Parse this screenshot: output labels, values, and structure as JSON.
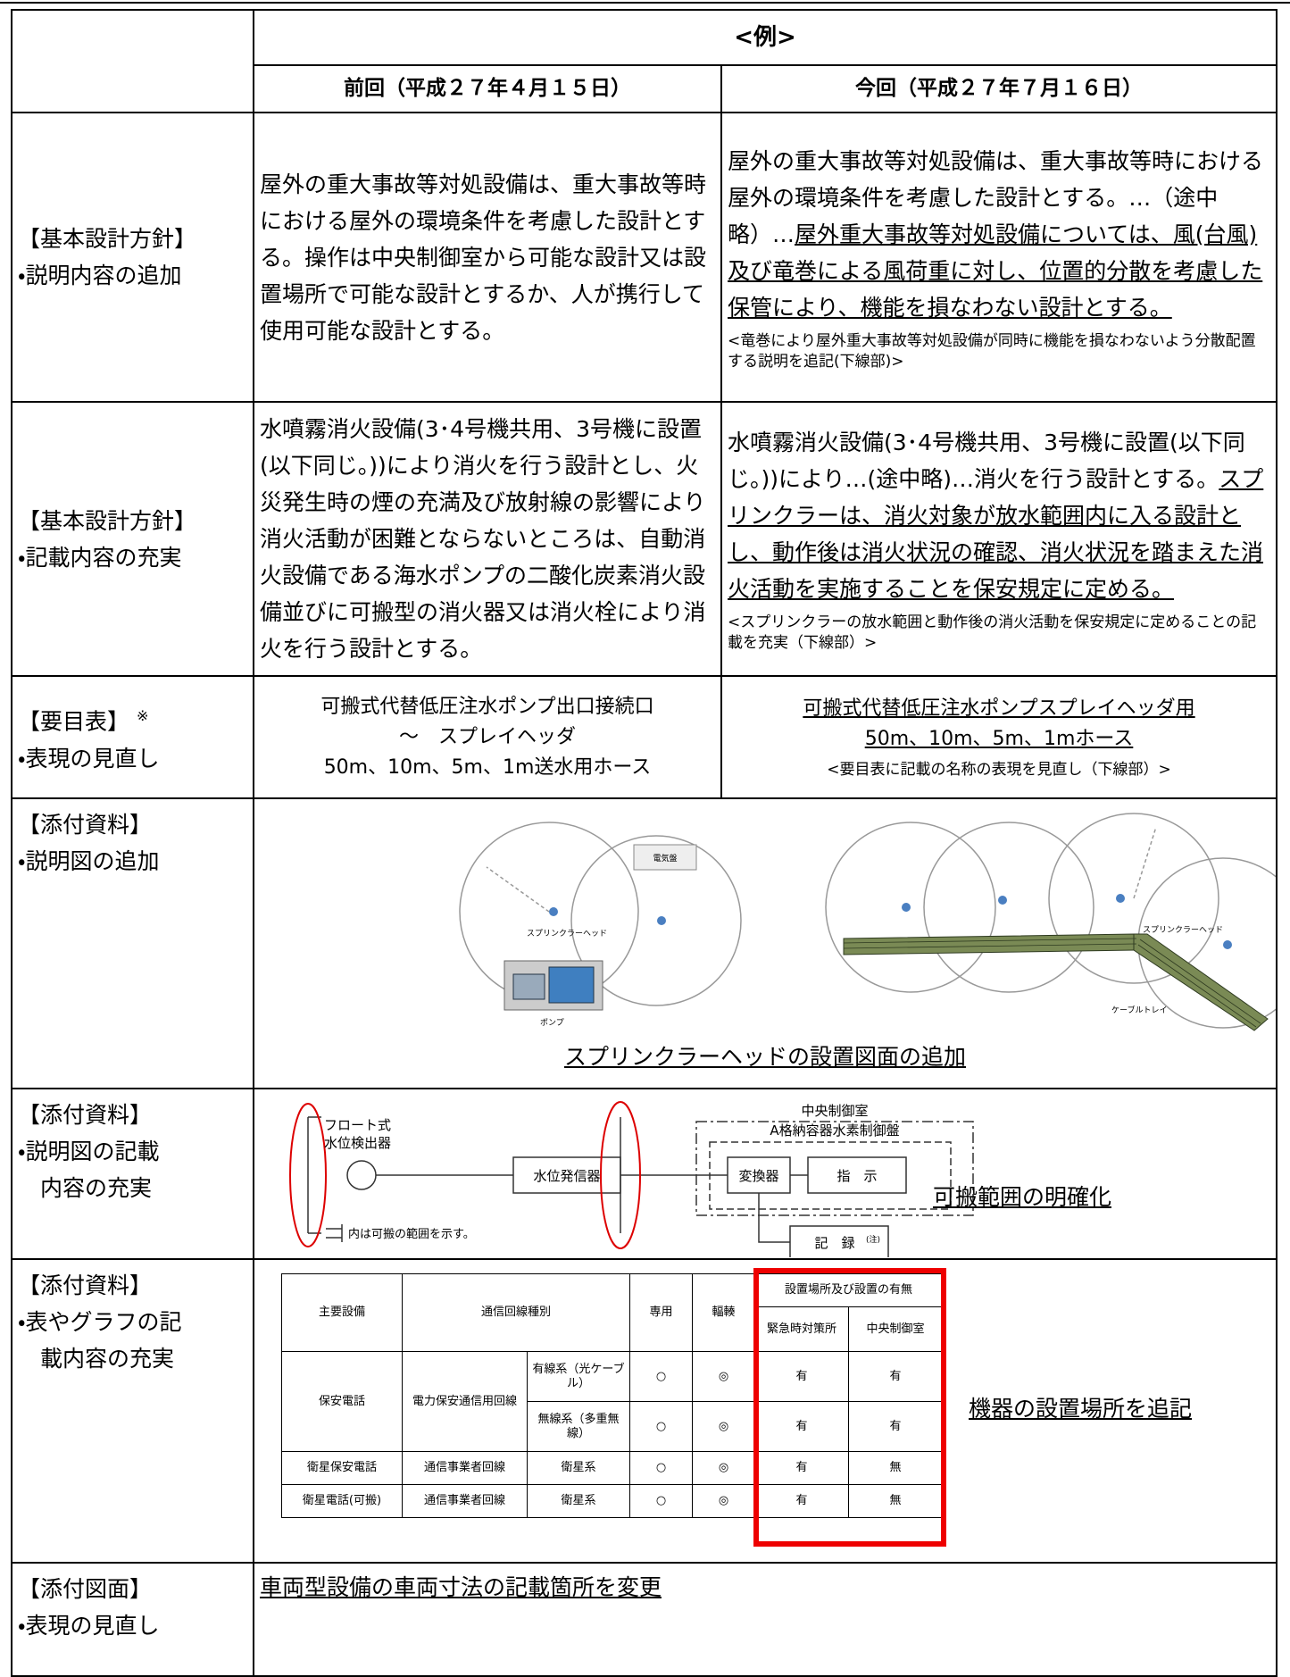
{
  "header": {
    "example": "<例>",
    "before": "前回（平成２７年４月１５日）",
    "after": "今回（平成２７年７月１６日）"
  },
  "rows": [
    {
      "label": [
        "【基本設計方針】",
        "・説明内容の追加"
      ],
      "before": {
        "paragraphs": [
          [
            {
              "text": "屋外の重大事故等対処設備は、重大事故等時における屋外の環境条件を考慮した設計とする。操作は中央制御室から可能な設計又は設置場所で可能な設計とするか、人が携行して使用可能な設計とする。",
              "underline": false
            }
          ]
        ]
      },
      "after": {
        "paragraphs": [
          [
            {
              "text": "屋外の重大事故等対処設備は、重大事故等時における屋外の環境条件を考慮した設計とする。…（途中略）…",
              "underline": false
            },
            {
              "text": "屋外重大事故等対処設備については、風(台風)及び竜巻による風荷重に対し、位置的分散を考慮した保管により、機能を損なわない設計とする。",
              "underline": true
            }
          ]
        ],
        "note": "<竜巻により屋外重大事故等対処設備が同時に機能を損なわないよう分散配置する説明を追記(下線部)>"
      }
    },
    {
      "label": [
        "【基本設計方針】",
        "・記載内容の充実"
      ],
      "before": {
        "paragraphs": [
          [
            {
              "text": "水噴霧消火設備(3･4号機共用、3号機に設置(以下同じ。))により消火を行う設計とし、火災発生時の煙の充満及び放射線の影響により消火活動が困難とならないところは、自動消火設備である海水ポンプの二酸化炭素消火設備並びに可搬型の消火器又は消火栓により消火を行う設計とする。",
              "underline": false
            }
          ]
        ]
      },
      "after": {
        "paragraphs": [
          [
            {
              "text": "水噴霧消火設備(3･4号機共用、3号機に設置(以下同じ。))により…(途中略)…消火を行う設計とする。",
              "underline": false
            },
            {
              "text": "スプリンクラーは、消火対象が放水範囲内に入る設計とし、動作後は消火状況の確認、消火状況を踏まえた消火活動を実施することを保安規定に定める。",
              "underline": true
            }
          ]
        ],
        "note": "<スプリンクラーの放水範囲と動作後の消火活動を保安規定に定めることの記載を充実（下線部）>"
      }
    },
    {
      "label": [
        "【要目表】",
        "・表現の見直し"
      ],
      "label_mark": "※",
      "before": {
        "align": "center",
        "paragraphs": [
          [
            {
              "text": "可搬式代替低圧注水ポンプ出口接続口",
              "underline": false
            }
          ],
          [
            {
              "text": "～　スプレイヘッダ",
              "underline": false
            }
          ],
          [
            {
              "text": "50m、10m、5m、1m送水用ホース",
              "underline": false
            }
          ]
        ]
      },
      "after": {
        "align": "center",
        "paragraphs": [
          [
            {
              "text": "可搬式代替低圧注水ポンプスプレイヘッダ用",
              "underline": true
            }
          ],
          [
            {
              "text": "50m、10m、5m、1mホース",
              "underline": true
            }
          ]
        ],
        "note": "<要目表に記載の名称の表現を見直し（下線部）>"
      }
    },
    {
      "label": [
        "【添付資料】",
        "・説明図の追加"
      ]
    },
    {
      "label": [
        "【添付資料】",
        "・説明図の記載",
        "内容の充実"
      ]
    },
    {
      "label": [
        "【添付資料】",
        "・表やグラフの記",
        "載内容の充実"
      ]
    },
    {
      "label": [
        "【添付図面】",
        "・表現の見直し"
      ]
    }
  ],
  "figures": {
    "sprinkler": {
      "panel": "電気盤",
      "head_left": "スプリンクラーヘッド",
      "pump": "ポンプ",
      "head_right": "スプリンクラーヘッド",
      "tray": "ケーブルトレイ",
      "caption": "スプリンクラーヘッドの設置図面の追加"
    },
    "level": {
      "float1": "フロート式",
      "float2": "水位検出器",
      "transmitter": "水位発信器",
      "room": "中央制御室",
      "panel": "A格納容器水素制御盤",
      "converter": "変換器",
      "indicator": "指　示",
      "recorder": "記　録",
      "recorder_note": "(注)",
      "legend": "内は可搬の範囲を示す。",
      "caption": "可搬範囲の明確化"
    }
  },
  "comm_table": {
    "headers": [
      "主要設備",
      "通信回線種別",
      "専用",
      "輻輳",
      "設置場所及び設置の有無",
      "緊急時対策所",
      "中央制御室"
    ],
    "rows": [
      [
        "保安電話",
        "電力保安通信用回線",
        "有線系（光ケーブル）",
        "○",
        "◎",
        "有",
        "有"
      ],
      [
        "無線系（多重無線）",
        "○",
        "◎",
        "有",
        "有"
      ],
      [
        "衛星保安電話",
        "通信事業者回線",
        "衛星系",
        "○",
        "◎",
        "有",
        "無"
      ],
      [
        "衛星電話(可搬)",
        "通信事業者回線",
        "衛星系",
        "○",
        "◎",
        "有",
        "無"
      ]
    ],
    "caption": "機器の設置場所を追記"
  },
  "drawing_row": {
    "text": "車両型設備の車両寸法の記載箇所を変更"
  }
}
